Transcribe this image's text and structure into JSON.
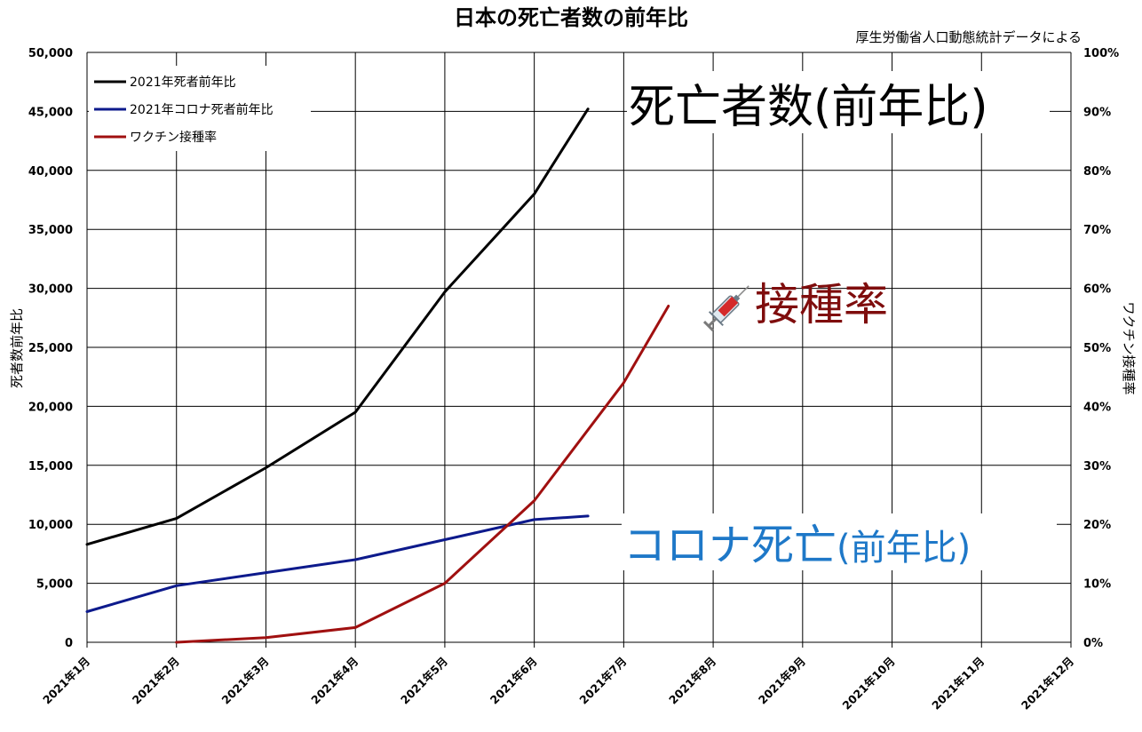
{
  "chart_data": {
    "type": "line",
    "title": "日本の死亡者数の前年比",
    "source_note": "厚生労働省人口動態統計データによる",
    "ylabel_left": "死者数前年比",
    "ylabel_right": "ワクチン接種率",
    "categories": [
      "2021年1月",
      "2021年2月",
      "2021年3月",
      "2021年4月",
      "2021年5月",
      "2021年6月",
      "2021年7月",
      "2021年8月",
      "2021年9月",
      "2021年10月",
      "2021年11月",
      "2021年12月"
    ],
    "yticks_left": [
      "0",
      "5,000",
      "10,000",
      "15,000",
      "20,000",
      "25,000",
      "30,000",
      "35,000",
      "40,000",
      "45,000",
      "50,000"
    ],
    "yticks_right": [
      "0%",
      "10%",
      "20%",
      "30%",
      "40%",
      "50%",
      "60%",
      "70%",
      "80%",
      "90%",
      "100%"
    ],
    "ylim_left": [
      0,
      50000
    ],
    "ylim_right": [
      0,
      100
    ],
    "grid": true,
    "legend_position": "top-left",
    "series": [
      {
        "name": "2021年死者前年比",
        "axis": "left",
        "color": "#000000",
        "x": [
          0,
          1,
          2,
          3,
          4,
          5,
          5.6
        ],
        "values": [
          8300,
          10500,
          14800,
          19500,
          29700,
          38000,
          45200
        ]
      },
      {
        "name": "2021年コロナ死者前年比",
        "axis": "left",
        "color": "#0d1a8c",
        "x": [
          0,
          1,
          2,
          3,
          4,
          5,
          5.6
        ],
        "values": [
          2600,
          4800,
          5900,
          7000,
          8700,
          10400,
          10700
        ]
      },
      {
        "name": "ワクチン接種率",
        "axis": "right",
        "color": "#a01010",
        "x": [
          1,
          2,
          3,
          4,
          5,
          6,
          6.5
        ],
        "values": [
          0,
          0.8,
          2.5,
          10,
          24,
          44,
          57
        ]
      }
    ],
    "annotations": {
      "deaths": "死亡者数(前年比)",
      "vaccination": "接種率",
      "syringe_icon": "syringe-icon",
      "covid_main": "コロナ死亡",
      "covid_paren": "(前年比)"
    },
    "colors": {
      "deaths_annotation": "#000000",
      "vax_annotation": "#7f0d0d",
      "covid_annotation": "#1e78c8",
      "grid": "#000000"
    }
  }
}
